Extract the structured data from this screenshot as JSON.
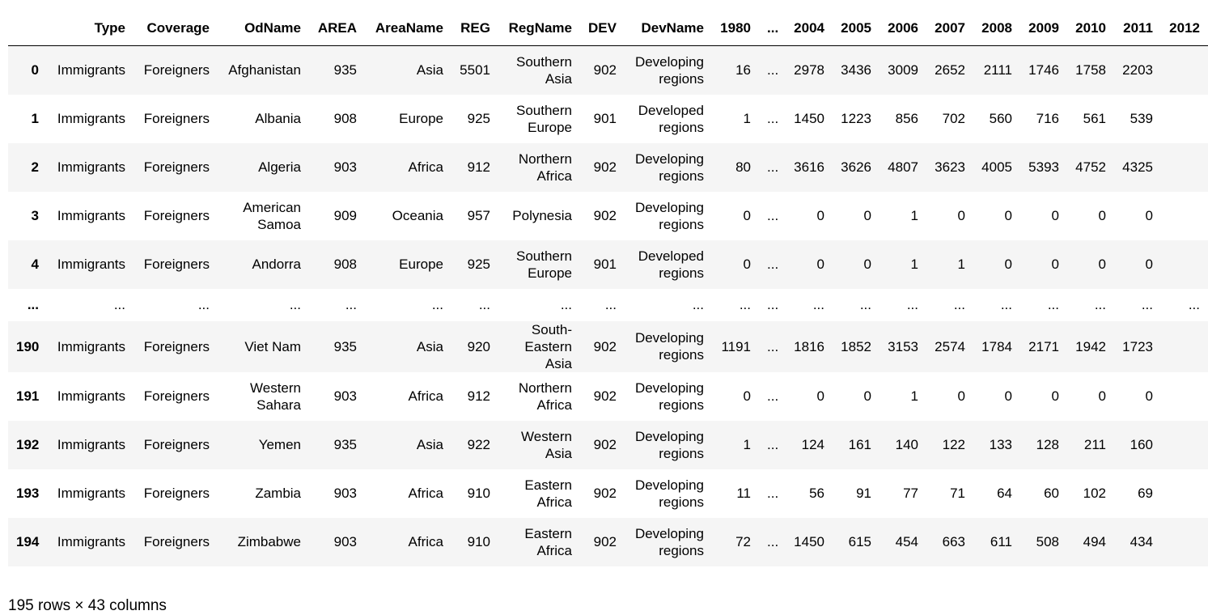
{
  "columns": [
    "",
    "Type",
    "Coverage",
    "OdName",
    "AREA",
    "AreaName",
    "REG",
    "RegName",
    "DEV",
    "DevName",
    "1980",
    "...",
    "2004",
    "2005",
    "2006",
    "2007",
    "2008",
    "2009",
    "2010",
    "2011",
    "2012"
  ],
  "rows": [
    [
      "0",
      "Immigrants",
      "Foreigners",
      "Afghanistan",
      "935",
      "Asia",
      "5501",
      "Southern Asia",
      "902",
      "Developing regions",
      "16",
      "...",
      "2978",
      "3436",
      "3009",
      "2652",
      "2111",
      "1746",
      "1758",
      "2203",
      ""
    ],
    [
      "1",
      "Immigrants",
      "Foreigners",
      "Albania",
      "908",
      "Europe",
      "925",
      "Southern Europe",
      "901",
      "Developed regions",
      "1",
      "...",
      "1450",
      "1223",
      "856",
      "702",
      "560",
      "716",
      "561",
      "539",
      ""
    ],
    [
      "2",
      "Immigrants",
      "Foreigners",
      "Algeria",
      "903",
      "Africa",
      "912",
      "Northern Africa",
      "902",
      "Developing regions",
      "80",
      "...",
      "3616",
      "3626",
      "4807",
      "3623",
      "4005",
      "5393",
      "4752",
      "4325",
      ""
    ],
    [
      "3",
      "Immigrants",
      "Foreigners",
      "American Samoa",
      "909",
      "Oceania",
      "957",
      "Polynesia",
      "902",
      "Developing regions",
      "0",
      "...",
      "0",
      "0",
      "1",
      "0",
      "0",
      "0",
      "0",
      "0",
      ""
    ],
    [
      "4",
      "Immigrants",
      "Foreigners",
      "Andorra",
      "908",
      "Europe",
      "925",
      "Southern Europe",
      "901",
      "Developed regions",
      "0",
      "...",
      "0",
      "0",
      "1",
      "1",
      "0",
      "0",
      "0",
      "0",
      ""
    ],
    [
      "...",
      "...",
      "...",
      "...",
      "...",
      "...",
      "...",
      "...",
      "...",
      "...",
      "...",
      "...",
      "...",
      "...",
      "...",
      "...",
      "...",
      "...",
      "...",
      "...",
      "..."
    ],
    [
      "190",
      "Immigrants",
      "Foreigners",
      "Viet Nam",
      "935",
      "Asia",
      "920",
      "South-Eastern Asia",
      "902",
      "Developing regions",
      "1191",
      "...",
      "1816",
      "1852",
      "3153",
      "2574",
      "1784",
      "2171",
      "1942",
      "1723",
      ""
    ],
    [
      "191",
      "Immigrants",
      "Foreigners",
      "Western Sahara",
      "903",
      "Africa",
      "912",
      "Northern Africa",
      "902",
      "Developing regions",
      "0",
      "...",
      "0",
      "0",
      "1",
      "0",
      "0",
      "0",
      "0",
      "0",
      ""
    ],
    [
      "192",
      "Immigrants",
      "Foreigners",
      "Yemen",
      "935",
      "Asia",
      "922",
      "Western Asia",
      "902",
      "Developing regions",
      "1",
      "...",
      "124",
      "161",
      "140",
      "122",
      "133",
      "128",
      "211",
      "160",
      ""
    ],
    [
      "193",
      "Immigrants",
      "Foreigners",
      "Zambia",
      "903",
      "Africa",
      "910",
      "Eastern Africa",
      "902",
      "Developing regions",
      "11",
      "...",
      "56",
      "91",
      "77",
      "71",
      "64",
      "60",
      "102",
      "69",
      ""
    ],
    [
      "194",
      "Immigrants",
      "Foreigners",
      "Zimbabwe",
      "903",
      "Africa",
      "910",
      "Eastern Africa",
      "902",
      "Developing regions",
      "72",
      "...",
      "1450",
      "615",
      "454",
      "663",
      "611",
      "508",
      "494",
      "434",
      ""
    ]
  ],
  "footer": "195 rows × 43 columns"
}
